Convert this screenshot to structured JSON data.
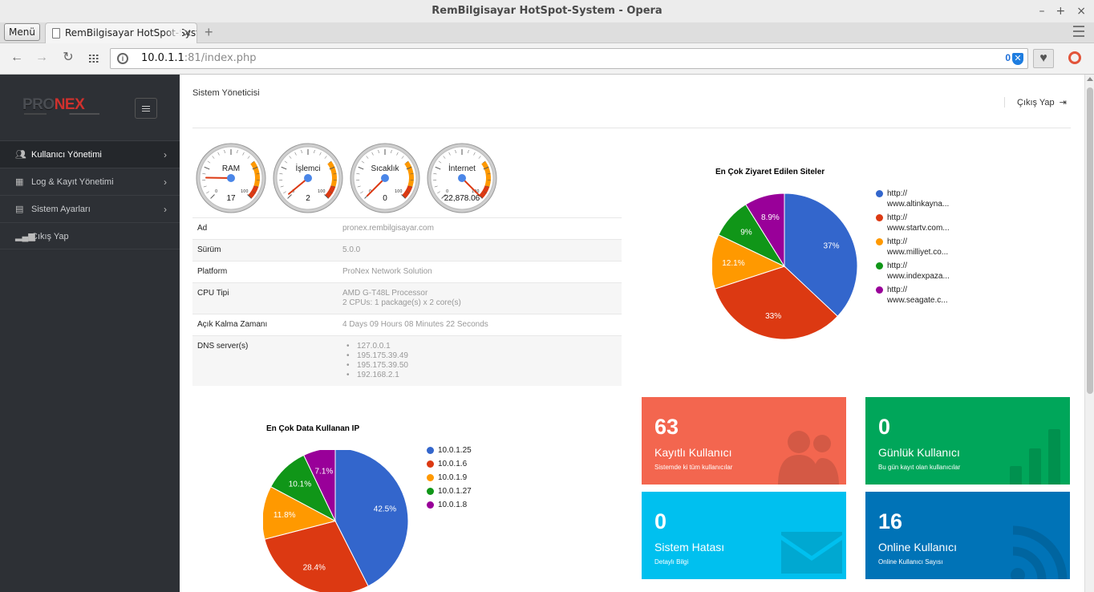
{
  "window": {
    "title": "RemBilgisayar HotSpot-System - Opera",
    "menu_label": "Menü",
    "tab_title": "RemBilgisayar HotSpot-System",
    "url_host": "10.0.1.1",
    "url_rest": ":81/index.php",
    "shield_count": "0"
  },
  "sidebar": {
    "logo_pro": "PRO",
    "logo_nex": "NEX",
    "items": [
      {
        "label": "Kullanıcı Yönetimi"
      },
      {
        "label": "Log & Kayıt Yönetimi"
      },
      {
        "label": "Sistem Ayarları"
      },
      {
        "label": "Çıkış Yap"
      }
    ]
  },
  "header": {
    "title": "Sistem Yöneticisi",
    "logout": "Çıkış Yap"
  },
  "gauges": [
    {
      "label": "RAM",
      "value": "17",
      "min": "0",
      "max": "100"
    },
    {
      "label": "İşlemci",
      "value": "2",
      "min": "0",
      "max": "100"
    },
    {
      "label": "Sıcaklık",
      "value": "0",
      "min": "0",
      "max": "100"
    },
    {
      "label": "İnternet",
      "value": "22,878.06",
      "min": "0",
      "max": "100"
    }
  ],
  "info": {
    "ad_label": "Ad",
    "ad_value": "pronex.rembilgisayar.com",
    "surum_label": "Sürüm",
    "surum_value": "5.0.0",
    "platform_label": "Platform",
    "platform_value": "ProNex Network Solution",
    "cpu_label": "CPU Tipi",
    "cpu_value1": "AMD G-T48L Processor",
    "cpu_value2": "2 CPUs: 1 package(s) x 2 core(s)",
    "uptime_label": "Açık Kalma Zamanı",
    "uptime_value": "4 Days 09 Hours 08 Minutes 22 Seconds",
    "dns_label": "DNS server(s)",
    "dns": [
      "127.0.0.1",
      "195.175.39.49",
      "195.175.39.50",
      "192.168.2.1"
    ]
  },
  "sites_chart_title": "En Çok Ziyaret Edilen Siteler",
  "ip_chart_title": "En Çok Data Kullanan IP",
  "chart_data": [
    {
      "type": "pie",
      "title": "En Çok Ziyaret Edilen Siteler",
      "legend": "right",
      "slices": [
        {
          "name_l1": "http://",
          "name_l2": "www.altinkayna...",
          "value": 37,
          "label": "37%",
          "color": "#3366cc"
        },
        {
          "name_l1": "http://",
          "name_l2": "www.startv.com...",
          "value": 33,
          "label": "33%",
          "color": "#dc3912"
        },
        {
          "name_l1": "http://",
          "name_l2": "www.milliyet.co...",
          "value": 12.1,
          "label": "12.1%",
          "color": "#ff9900"
        },
        {
          "name_l1": "http://",
          "name_l2": "www.indexpaza...",
          "value": 9,
          "label": "9%",
          "color": "#109618"
        },
        {
          "name_l1": "http://",
          "name_l2": "www.seagate.c...",
          "value": 8.9,
          "label": "8.9%",
          "color": "#990099"
        }
      ]
    },
    {
      "type": "pie",
      "title": "En Çok Data Kullanan IP",
      "legend": "right",
      "slices": [
        {
          "name": "10.0.1.25",
          "value": 42.5,
          "label": "42.5%",
          "color": "#3366cc"
        },
        {
          "name": "10.0.1.6",
          "value": 28.4,
          "label": "28.4%",
          "color": "#dc3912"
        },
        {
          "name": "10.0.1.9",
          "value": 11.8,
          "label": "11.8%",
          "color": "#ff9900"
        },
        {
          "name": "10.0.1.27",
          "value": 10.1,
          "label": "10.1%",
          "color": "#109618"
        },
        {
          "name": "10.0.1.8",
          "value": 7.1,
          "label": "7.1%",
          "color": "#990099"
        }
      ]
    }
  ],
  "stats": {
    "registered": {
      "value": "63",
      "title": "Kayıtlı Kullanıcı",
      "sub": "Sistemde ki tüm kullanıcılar",
      "color": "#f3664f"
    },
    "daily": {
      "value": "0",
      "title": "Günlük Kullanıcı",
      "sub": "Bu gün kayıt olan kullanıcılar",
      "color": "#00a65a"
    },
    "errors": {
      "value": "0",
      "title": "Sistem Hatası",
      "sub": "Detaylı Bilgi",
      "color": "#00c0ef"
    },
    "online": {
      "value": "16",
      "title": "Online Kullanıcı",
      "sub": "Online Kullanıcı Sayısı",
      "color": "#0073b7"
    }
  }
}
